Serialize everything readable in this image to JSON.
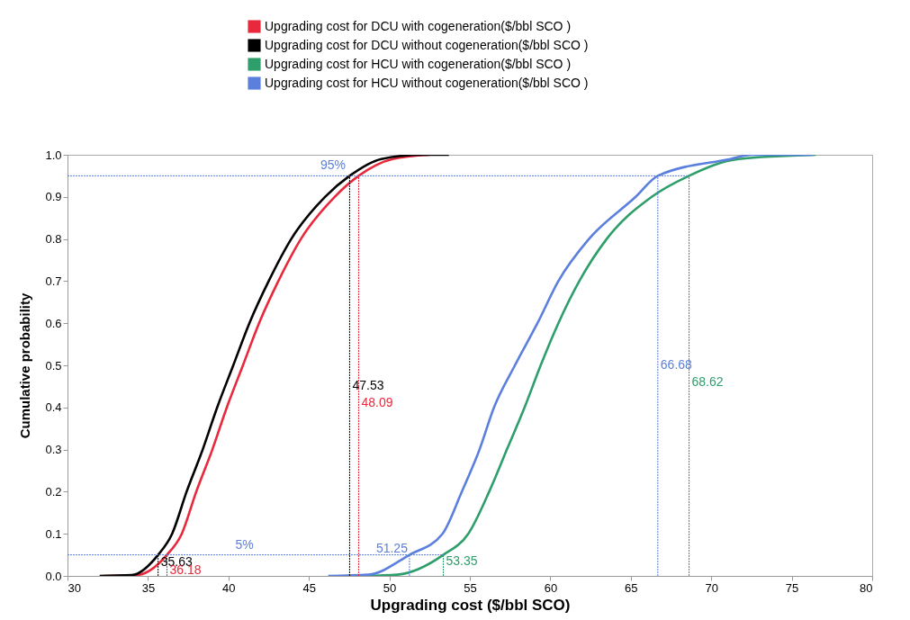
{
  "chart_data": {
    "type": "line",
    "xlabel": "Upgrading cost ($/bbl SCO)",
    "ylabel": "Cumulative  probability",
    "xlim": [
      30,
      80
    ],
    "ylim": [
      0,
      1
    ],
    "xticks": [
      30,
      35,
      40,
      45,
      50,
      55,
      60,
      65,
      70,
      75,
      80
    ],
    "yticks": [
      {
        "value": 0,
        "label": "0.0"
      },
      0.1,
      0.2,
      0.3,
      0.4,
      0.5,
      0.6,
      0.7,
      0.8,
      0.9,
      {
        "value": 1,
        "label": "1.0"
      }
    ],
    "legend": "top",
    "grid": false,
    "marker": "none",
    "series": [
      {
        "name": "Upgrading cost for DCU with cogeneration($/bbl SCO )",
        "color": "#e8283c",
        "x": [
          32.2,
          34.3,
          36.18,
          37.1,
          38.0,
          39.0,
          39.9,
          40.9,
          41.9,
          43.1,
          44.5,
          46.6,
          48.09,
          50.2,
          52.5
        ],
        "values": [
          0,
          0.002,
          0.05,
          0.1,
          0.2,
          0.3,
          0.4,
          0.5,
          0.6,
          0.7,
          0.8,
          0.9,
          0.95,
          0.99,
          1.0
        ]
      },
      {
        "name": "Upgrading cost for DCU without cogeneration($/bbl SCO )",
        "color": "#000000",
        "x": [
          32.0,
          34.0,
          35.63,
          36.5,
          37.4,
          38.4,
          39.3,
          40.3,
          41.3,
          42.5,
          43.9,
          46.0,
          47.53,
          49.5,
          52.0,
          53.7
        ],
        "values": [
          0,
          0.002,
          0.05,
          0.1,
          0.2,
          0.3,
          0.4,
          0.5,
          0.6,
          0.7,
          0.8,
          0.9,
          0.95,
          0.99,
          1.0,
          1.0
        ]
      },
      {
        "name": "Upgrading cost for HCU with cogeneration($/bbl SCO )",
        "color": "#2e9e6b",
        "x": [
          48.5,
          50.5,
          53.35,
          54.9,
          56.2,
          57.3,
          58.4,
          59.4,
          60.5,
          61.8,
          63.5,
          66.3,
          68.62,
          71.7,
          76.5
        ],
        "values": [
          0,
          0.003,
          0.05,
          0.1,
          0.2,
          0.3,
          0.4,
          0.5,
          0.6,
          0.7,
          0.8,
          0.9,
          0.95,
          0.99,
          1.0
        ]
      },
      {
        "name": "Upgrading cost for HCU without cogeneration($/bbl SCO )",
        "color": "#5b7fdc",
        "x": [
          46.2,
          48.7,
          51.25,
          53.3,
          54.5,
          55.6,
          56.5,
          57.8,
          59.2,
          60.5,
          62.4,
          65.3,
          66.68,
          71.2,
          72.5,
          76.3
        ],
        "values": [
          0,
          0.003,
          0.05,
          0.1,
          0.2,
          0.3,
          0.4,
          0.5,
          0.6,
          0.7,
          0.8,
          0.9,
          0.95,
          0.99,
          1.0,
          1.0
        ]
      },
      {
        "color": "#5b7fdc",
        "line_style": "dashed",
        "x": [
          30,
          53.35
        ],
        "values": [
          0.05,
          0.05
        ]
      },
      {
        "color": "#5b7fdc",
        "line_style": "dashed",
        "x": [
          30,
          68.62
        ],
        "values": [
          0.95,
          0.95
        ]
      },
      {
        "color": "#000000",
        "line_style": "dashed",
        "x": [
          35.63,
          35.63
        ],
        "values": [
          0,
          0.05
        ]
      },
      {
        "color": "#e8283c",
        "line_style": "dashed",
        "x": [
          36.18,
          36.18
        ],
        "values": [
          0,
          0.05
        ]
      },
      {
        "color": "#000000",
        "line_style": "dashed",
        "x": [
          47.53,
          47.53
        ],
        "values": [
          0,
          0.95
        ]
      },
      {
        "color": "#e8283c",
        "line_style": "dashed",
        "x": [
          48.09,
          48.09
        ],
        "values": [
          0,
          0.95
        ]
      },
      {
        "color": "#5b7fdc",
        "line_style": "dashed",
        "x": [
          51.25,
          51.25
        ],
        "values": [
          0,
          0.05
        ]
      },
      {
        "color": "#2e9e6b",
        "line_style": "dashed",
        "x": [
          53.35,
          53.35
        ],
        "values": [
          0,
          0.05
        ]
      },
      {
        "color": "#5b7fdc",
        "line_style": "dashed",
        "x": [
          66.68,
          66.68
        ],
        "values": [
          0,
          0.95
        ]
      },
      {
        "color": "#2e9e6b",
        "line_style": "dashed",
        "x": [
          68.62,
          68.62
        ],
        "values": [
          0,
          0.95
        ]
      }
    ],
    "annotations": [
      {
        "text": "5%",
        "x": 41,
        "y": 0.05
      },
      {
        "text": "95%",
        "x": 46.5,
        "y": 0.95
      },
      {
        "text": "35.63",
        "x": 35.63,
        "y": 0.033
      },
      {
        "text": "36.18",
        "x": 36.18,
        "y": 0.012
      },
      {
        "text": "47.53",
        "x": 47.53,
        "y": 0.45
      },
      {
        "text": "48.09",
        "x": 48.09,
        "y": 0.41
      },
      {
        "text": "51.25",
        "x": 51.25,
        "y": 0.05
      },
      {
        "text": "53.35",
        "x": 53.35,
        "y": 0.035
      },
      {
        "text": "66.68",
        "x": 66.68,
        "y": 0.5
      },
      {
        "text": "68.62",
        "x": 68.62,
        "y": 0.46
      }
    ]
  }
}
